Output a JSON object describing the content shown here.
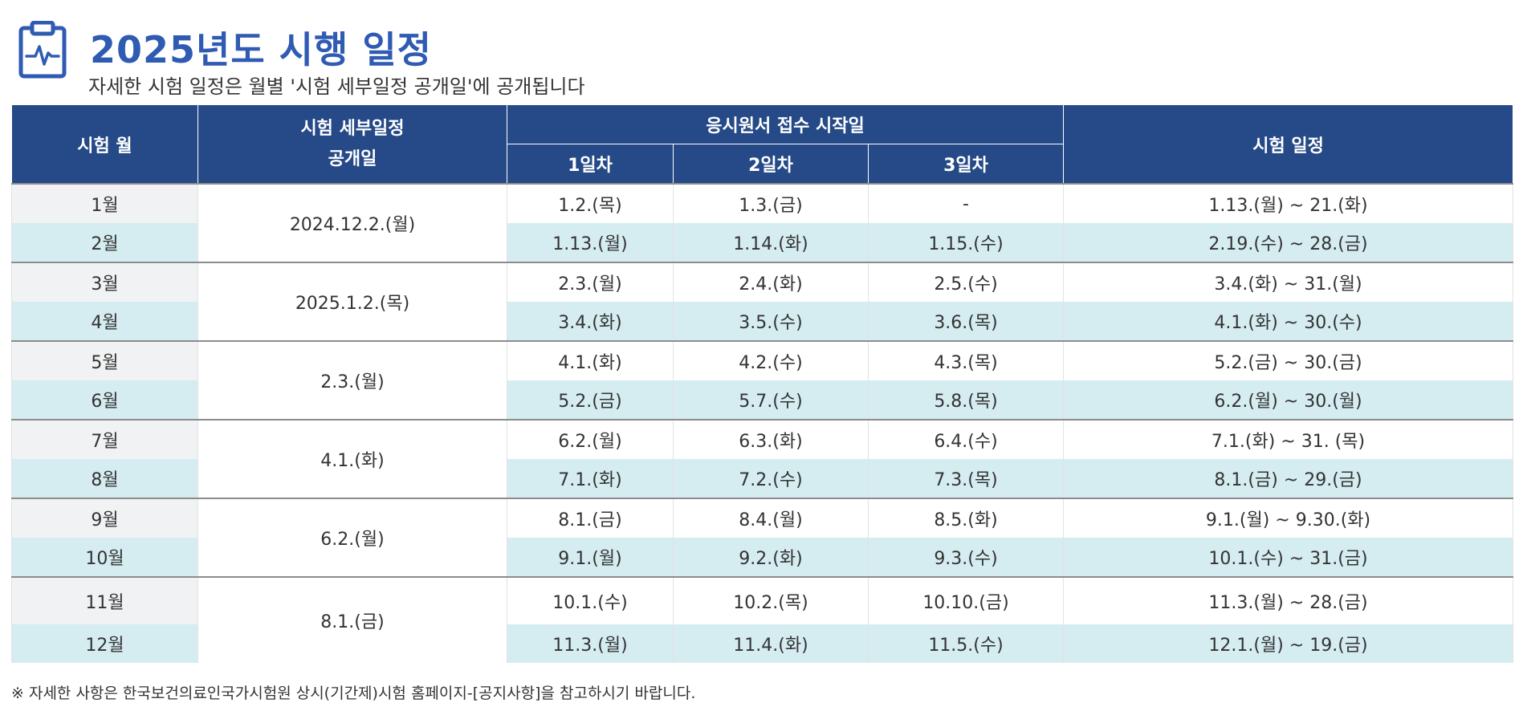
{
  "header": {
    "title": "2025년도 시행 일정",
    "subtitle": "자세한 시험 일정은  월별 '시험 세부일정 공개일'에 공개됩니다",
    "icon": "clipboard-pulse-icon",
    "accent_color": "#2f5bb3"
  },
  "table": {
    "header_color": "#254a87",
    "row_highlight_color": "#d5ecf1",
    "headers": {
      "month": "시험 월",
      "publish": "시험 세부일정\n공개일",
      "application": "응시원서 접수 시작일",
      "day1": "1일차",
      "day2": "2일차",
      "day3": "3일차",
      "exam": "시험 일정"
    },
    "rows": [
      {
        "month": "1월",
        "publish": "2024.12.2.(월)",
        "day1": "1.2.(목)",
        "day2": "1.3.(금)",
        "day3": "-",
        "exam": "1.13.(월) ~ 21.(화)"
      },
      {
        "month": "2월",
        "day1": "1.13.(월)",
        "day2": "1.14.(화)",
        "day3": "1.15.(수)",
        "exam": "2.19.(수) ~ 28.(금)"
      },
      {
        "month": "3월",
        "publish": "2025.1.2.(목)",
        "day1": "2.3.(월)",
        "day2": "2.4.(화)",
        "day3": "2.5.(수)",
        "exam": "3.4.(화) ~ 31.(월)"
      },
      {
        "month": "4월",
        "day1": "3.4.(화)",
        "day2": "3.5.(수)",
        "day3": "3.6.(목)",
        "exam": "4.1.(화) ~ 30.(수)"
      },
      {
        "month": "5월",
        "publish": "2.3.(월)",
        "day1": "4.1.(화)",
        "day2": "4.2.(수)",
        "day3": "4.3.(목)",
        "exam": "5.2.(금) ~ 30.(금)"
      },
      {
        "month": "6월",
        "day1": "5.2.(금)",
        "day2": "5.7.(수)",
        "day3": "5.8.(목)",
        "exam": "6.2.(월) ~ 30.(월)"
      },
      {
        "month": "7월",
        "publish": "4.1.(화)",
        "day1": "6.2.(월)",
        "day2": "6.3.(화)",
        "day3": "6.4.(수)",
        "exam": "7.1.(화) ~ 31. (목)"
      },
      {
        "month": "8월",
        "day1": "7.1.(화)",
        "day2": "7.2.(수)",
        "day3": "7.3.(목)",
        "exam": "8.1.(금) ~ 29.(금)"
      },
      {
        "month": "9월",
        "publish": "6.2.(월)",
        "day1": "8.1.(금)",
        "day2": "8.4.(월)",
        "day3": "8.5.(화)",
        "exam": "9.1.(월) ~ 9.30.(화)"
      },
      {
        "month": "10월",
        "day1": "9.1.(월)",
        "day2": "9.2.(화)",
        "day3": "9.3.(수)",
        "exam": "10.1.(수) ~ 31.(금)"
      },
      {
        "month": "11월",
        "publish": "8.1.(금)",
        "day1": "10.1.(수)",
        "day2": "10.2.(목)",
        "day3": "10.10.(금)",
        "exam": "11.3.(월) ~ 28.(금)"
      },
      {
        "month": "12월",
        "day1": "11.3.(월)",
        "day2": "11.4.(화)",
        "day3": "11.5.(수)",
        "exam": "12.1.(월) ~ 19.(금)"
      }
    ]
  },
  "footnote": "※ 자세한 사항은 한국보건의료인국가시험원 상시(기간제)시험 홈페이지-[공지사항]을 참고하시기 바랍니다."
}
